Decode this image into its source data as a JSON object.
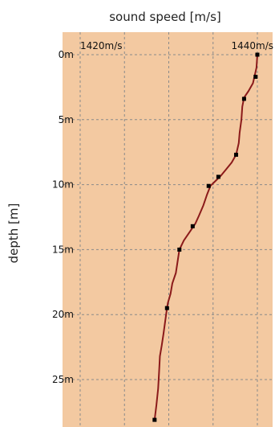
{
  "chart_data": {
    "type": "line",
    "title": "sound speed [m/s]",
    "xlabel": "",
    "ylabel": "depth [m]",
    "x_unit": "m/s",
    "y_unit": "m",
    "x_ticks": [
      1420,
      1440
    ],
    "x_tick_labels": [
      "1420m/s",
      "1440m/s"
    ],
    "y_ticks": [
      0,
      5,
      10,
      15,
      20,
      25
    ],
    "y_tick_labels": [
      "0m",
      "5m",
      "10m",
      "15m",
      "20m",
      "25m"
    ],
    "xlim": [
      1420,
      1440
    ],
    "ylim": [
      0,
      28.5
    ],
    "y_inverted": true,
    "grid": true,
    "colors": {
      "plot_background": "#F3C9A1",
      "line": "#8B1A1A",
      "marker": "#000000"
    },
    "series": [
      {
        "values": [
          {
            "x": 1440.0,
            "y": 0
          },
          {
            "x": 1439.9,
            "y": 1.0
          },
          {
            "x": 1439.7,
            "y": 1.6
          },
          {
            "x": 1439.5,
            "y": 2.2
          },
          {
            "x": 1439.0,
            "y": 2.8
          },
          {
            "x": 1438.5,
            "y": 3.3
          },
          {
            "x": 1438.3,
            "y": 4.0
          },
          {
            "x": 1438.2,
            "y": 5.0
          },
          {
            "x": 1438.0,
            "y": 6.0
          },
          {
            "x": 1437.9,
            "y": 6.8
          },
          {
            "x": 1437.6,
            "y": 7.7
          },
          {
            "x": 1437.1,
            "y": 8.3
          },
          {
            "x": 1436.5,
            "y": 8.8
          },
          {
            "x": 1435.9,
            "y": 9.3
          },
          {
            "x": 1435.3,
            "y": 9.7
          },
          {
            "x": 1434.7,
            "y": 10.1
          },
          {
            "x": 1434.3,
            "y": 10.8
          },
          {
            "x": 1433.9,
            "y": 11.6
          },
          {
            "x": 1433.4,
            "y": 12.4
          },
          {
            "x": 1433.0,
            "y": 13.0
          },
          {
            "x": 1432.4,
            "y": 13.6
          },
          {
            "x": 1431.7,
            "y": 14.3
          },
          {
            "x": 1431.2,
            "y": 15.0
          },
          {
            "x": 1431.0,
            "y": 15.9
          },
          {
            "x": 1430.8,
            "y": 16.8
          },
          {
            "x": 1430.4,
            "y": 17.6
          },
          {
            "x": 1430.2,
            "y": 18.4
          },
          {
            "x": 1429.9,
            "y": 19.1
          },
          {
            "x": 1429.8,
            "y": 19.5
          },
          {
            "x": 1429.6,
            "y": 20.5
          },
          {
            "x": 1429.4,
            "y": 21.5
          },
          {
            "x": 1429.2,
            "y": 22.4
          },
          {
            "x": 1429.0,
            "y": 23.2
          },
          {
            "x": 1428.9,
            "y": 24.5
          },
          {
            "x": 1428.8,
            "y": 25.7
          },
          {
            "x": 1428.6,
            "y": 27.0
          },
          {
            "x": 1428.4,
            "y": 28.1
          }
        ],
        "markers": [
          {
            "x": 1440.0,
            "y": 0
          },
          {
            "x": 1439.8,
            "y": 1.7
          },
          {
            "x": 1438.5,
            "y": 3.4
          },
          {
            "x": 1437.6,
            "y": 7.7
          },
          {
            "x": 1435.6,
            "y": 9.4
          },
          {
            "x": 1434.5,
            "y": 10.1
          },
          {
            "x": 1432.7,
            "y": 13.2
          },
          {
            "x": 1431.2,
            "y": 15.0
          },
          {
            "x": 1429.8,
            "y": 19.5
          },
          {
            "x": 1428.4,
            "y": 28.1
          }
        ]
      }
    ]
  }
}
